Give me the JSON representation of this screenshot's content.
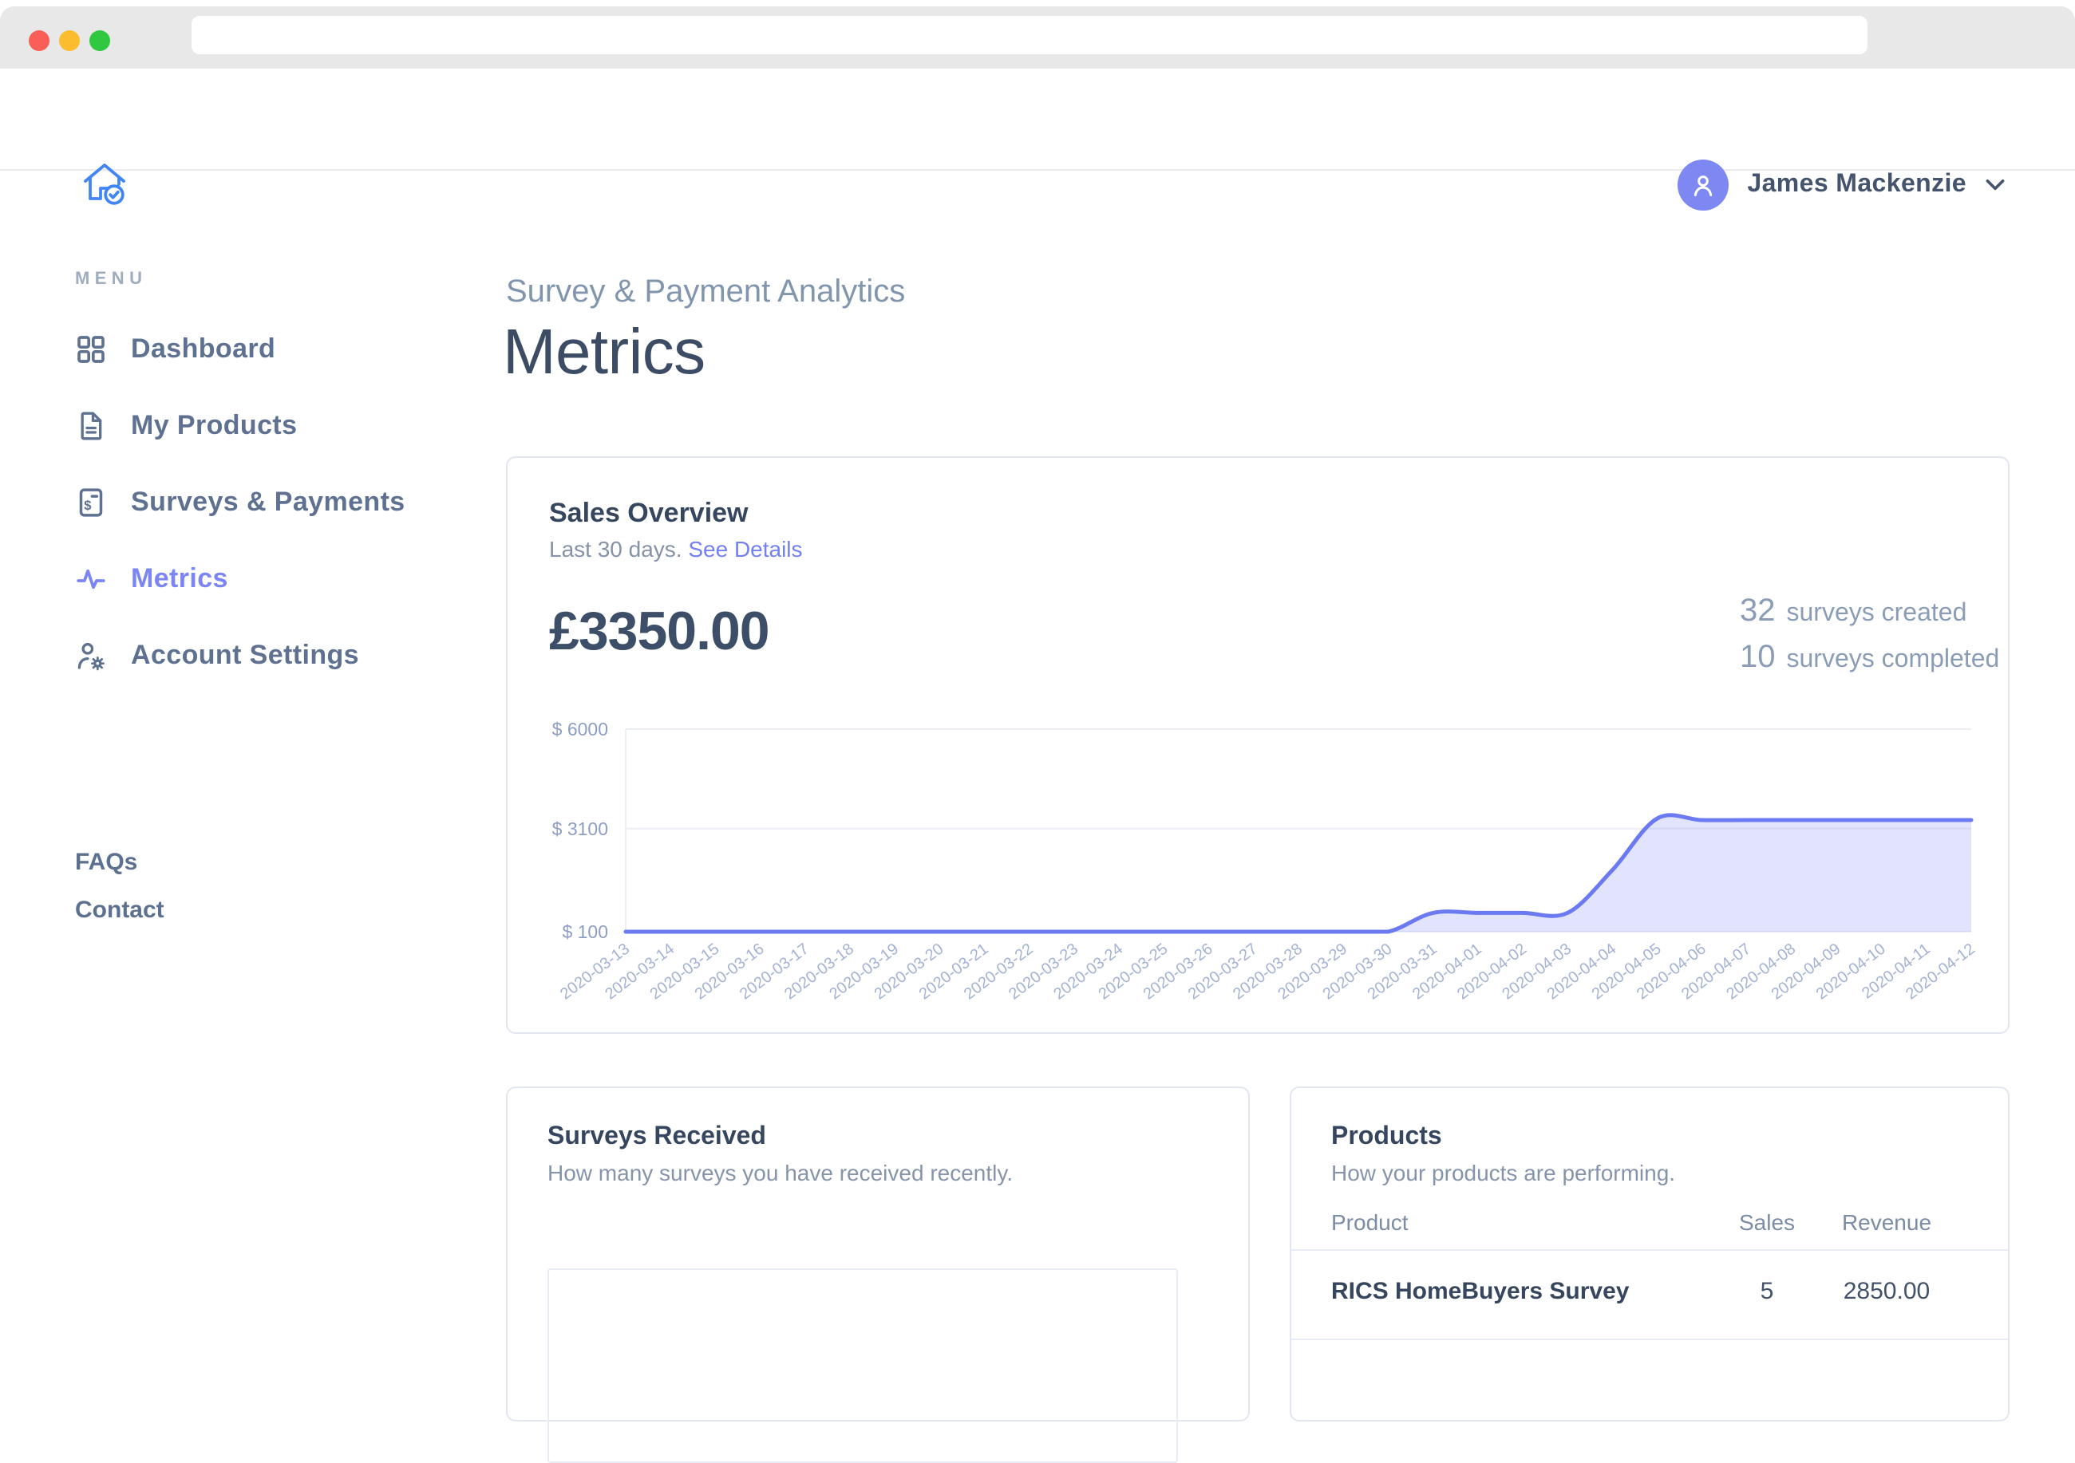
{
  "browser": {
    "url_value": ""
  },
  "header": {
    "user_name": "James Mackenzie"
  },
  "sidebar": {
    "menu_label": "MENU",
    "items": [
      {
        "label": "Dashboard",
        "icon": "grid-icon",
        "active": false
      },
      {
        "label": "My Products",
        "icon": "file-icon",
        "active": false
      },
      {
        "label": "Surveys & Payments",
        "icon": "invoice-dollar-icon",
        "active": false
      },
      {
        "label": "Metrics",
        "icon": "activity-icon",
        "active": true
      },
      {
        "label": "Account Settings",
        "icon": "user-gear-icon",
        "active": false
      }
    ],
    "footer_links": [
      {
        "label": "FAQs"
      },
      {
        "label": "Contact"
      }
    ]
  },
  "main": {
    "eyebrow": "Survey & Payment Analytics",
    "title": "Metrics"
  },
  "sales_overview": {
    "title": "Sales Overview",
    "subtitle": "Last 30 days.",
    "link_label": "See Details",
    "total": "£3350.00",
    "stats": [
      {
        "value": "32",
        "label": "surveys created"
      },
      {
        "value": "10",
        "label": "surveys completed"
      }
    ]
  },
  "chart_data": {
    "type": "area",
    "title": "Sales Overview",
    "xlabel": "",
    "ylabel": "",
    "ylim": [
      100,
      6000
    ],
    "grid": true,
    "legend": false,
    "line_color": "#6b7af0",
    "fill_color": "rgba(123,134,244,0.22)",
    "y_ticks": [
      {
        "label": "$ 6000",
        "value": 6000
      },
      {
        "label": "$ 3100",
        "value": 3100
      },
      {
        "label": "$ 100",
        "value": 100
      }
    ],
    "x": [
      "2020-03-13",
      "2020-03-14",
      "2020-03-15",
      "2020-03-16",
      "2020-03-17",
      "2020-03-18",
      "2020-03-19",
      "2020-03-20",
      "2020-03-21",
      "2020-03-22",
      "2020-03-23",
      "2020-03-24",
      "2020-03-25",
      "2020-03-26",
      "2020-03-27",
      "2020-03-28",
      "2020-03-29",
      "2020-03-30",
      "2020-03-31",
      "2020-04-01",
      "2020-04-02",
      "2020-04-03",
      "2020-04-04",
      "2020-04-05",
      "2020-04-06",
      "2020-04-07",
      "2020-04-08",
      "2020-04-09",
      "2020-04-10",
      "2020-04-11",
      "2020-04-12"
    ],
    "values": [
      100,
      100,
      100,
      100,
      100,
      100,
      100,
      100,
      100,
      100,
      100,
      100,
      100,
      100,
      100,
      100,
      100,
      100,
      650,
      650,
      650,
      650,
      1900,
      3400,
      3350,
      3350,
      3350,
      3350,
      3350,
      3350,
      3350
    ]
  },
  "surveys_received": {
    "title": "Surveys Received",
    "subtitle": "How many surveys you have received recently."
  },
  "products": {
    "title": "Products",
    "subtitle": "How your products are performing.",
    "columns": [
      "Product",
      "Sales",
      "Revenue"
    ],
    "rows": [
      {
        "product": "RICS HomeBuyers Survey",
        "sales": "5",
        "revenue": "2850.00"
      }
    ]
  },
  "colors": {
    "accent_purple": "#7b86f4",
    "link_purple": "#7280f2",
    "avatar_purple": "#7d88f2",
    "logo_blue": "#4286f5",
    "chart_line": "#6b7af0",
    "traffic_red": "#f95f57",
    "traffic_yellow": "#fbbd2e",
    "traffic_green": "#2fc840"
  }
}
